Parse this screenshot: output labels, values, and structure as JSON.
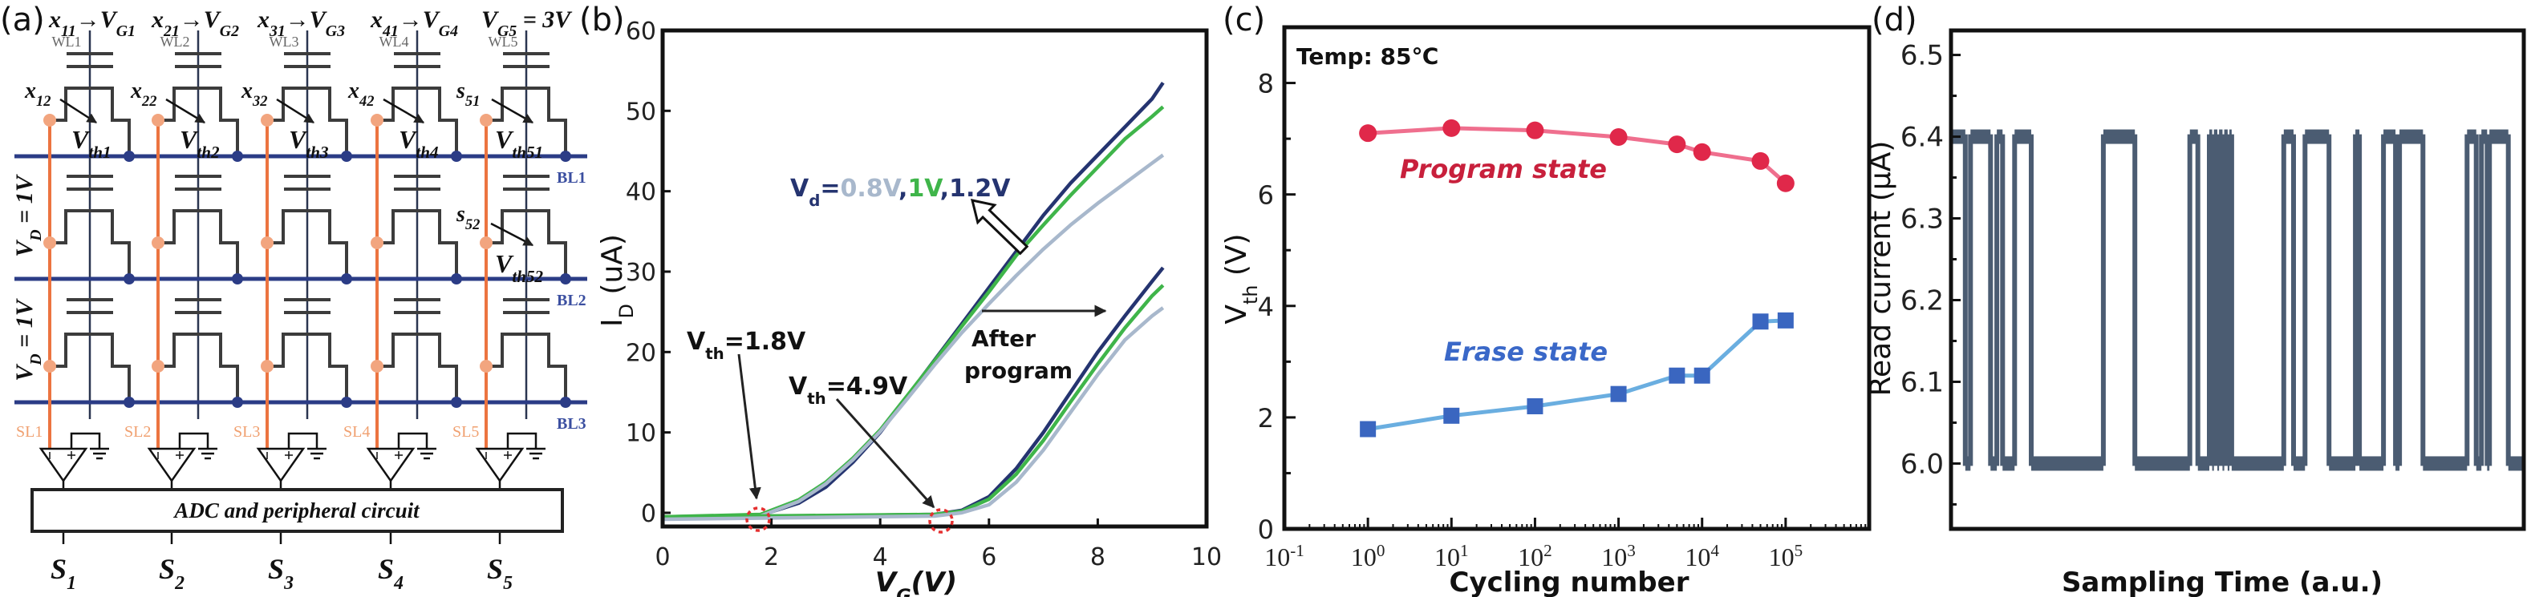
{
  "panel_labels": {
    "a": "(a)",
    "b": "(b)",
    "c": "(c)",
    "d": "(d)"
  },
  "diagram": {
    "top_labels": [
      "x_{11}→V_{G1}",
      "x_{21}→V_{G2}",
      "x_{31}→V_{G3}",
      "x_{41}→V_{G4}",
      "V_{G5} = 3V"
    ],
    "word_lines": [
      "WL1",
      "WL2",
      "WL3",
      "WL4",
      "WL5"
    ],
    "input_labels_row1": [
      "x_{12}",
      "x_{22}",
      "x_{32}",
      "x_{42}",
      "s_{51}"
    ],
    "vth_labels_row1": [
      "V_{th1}",
      "V_{th2}",
      "V_{th3}",
      "V_{th4}",
      "V_{th51}"
    ],
    "input_label_row2": "s_{52}",
    "vth_label_row2": "V_{th52}",
    "bit_lines": [
      "BL1",
      "BL2",
      "BL3"
    ],
    "source_lines": [
      "SL1",
      "SL2",
      "SL3",
      "SL4",
      "SL5"
    ],
    "drain_voltage_labels": [
      "V_{D} = 1V",
      "V_{D} = 1V"
    ],
    "adc_label": "ADC and peripheral circuit",
    "outputs": [
      "S_{1}",
      "S_{2}",
      "S_{3}",
      "S_{4}",
      "S_{5}"
    ],
    "colors": {
      "bit_line": "#2b3c86",
      "source_line": "#ec7440",
      "source_node": "#f2a57f",
      "source_label": "#f0a070",
      "bit_label": "#3b4fa0",
      "cell": "#3c3c3c",
      "word_line": "#2a3550"
    }
  },
  "chart_data": [
    {
      "panel": "b",
      "type": "line",
      "xlabel": "V_{G}(V)",
      "ylabel": "I_{D} (uA)",
      "xlim": [
        0,
        10
      ],
      "ylim": [
        -1.7,
        60
      ],
      "xticks": [
        0,
        2,
        4,
        6,
        8,
        10
      ],
      "yticks": [
        0,
        10,
        20,
        30,
        40,
        50,
        60
      ],
      "grid": false,
      "series": [
        {
          "name": "1.2V",
          "after_program": false,
          "color": "#253470",
          "x": [
            0,
            1.8,
            2.5,
            3,
            3.5,
            4,
            4.5,
            5,
            5.5,
            6,
            6.5,
            7,
            7.5,
            8,
            8.5,
            9,
            9.2
          ],
          "y": [
            -0.5,
            -0.3,
            1.2,
            3.2,
            6.3,
            10,
            14.5,
            19,
            23.5,
            28,
            32.5,
            37,
            41,
            44.5,
            48,
            51.5,
            53.5
          ]
        },
        {
          "name": "1V",
          "after_program": false,
          "color": "#3fb54a",
          "x": [
            0,
            1.8,
            2.5,
            3,
            3.5,
            4,
            4.5,
            5,
            5.5,
            6,
            6.5,
            7,
            7.5,
            8,
            8.5,
            9,
            9.2
          ],
          "y": [
            -0.5,
            -0.2,
            1.6,
            3.8,
            6.8,
            10.3,
            14.6,
            18.9,
            23.2,
            27.5,
            32,
            35.8,
            39.5,
            43,
            46.5,
            49.3,
            50.5
          ]
        },
        {
          "name": "0.8V",
          "after_program": false,
          "color": "#a8b8cc",
          "x": [
            0,
            1.8,
            2.5,
            3,
            3.5,
            4,
            4.5,
            5,
            5.5,
            6,
            6.5,
            7,
            7.5,
            8,
            8.5,
            9,
            9.2
          ],
          "y": [
            -0.7,
            -0.4,
            1.4,
            3.6,
            6.6,
            10.1,
            14.2,
            18.4,
            22.4,
            26,
            29.5,
            32.8,
            35.8,
            38.5,
            41,
            43.5,
            44.5
          ]
        },
        {
          "name": "1.2V",
          "after_program": true,
          "color": "#253470",
          "x": [
            0,
            5,
            5.5,
            6,
            6.5,
            7,
            7.5,
            8,
            8.5,
            9,
            9.2
          ],
          "y": [
            -0.6,
            -0.2,
            0.3,
            2,
            5.5,
            10,
            15,
            20,
            24.5,
            28.8,
            30.5
          ]
        },
        {
          "name": "1V",
          "after_program": true,
          "color": "#3fb54a",
          "x": [
            0,
            5,
            5.5,
            6,
            6.5,
            7,
            7.5,
            8,
            8.5,
            9,
            9.2
          ],
          "y": [
            -0.5,
            -0.2,
            0.2,
            1.7,
            4.8,
            9,
            13.8,
            18.5,
            23,
            27,
            28.3
          ]
        },
        {
          "name": "0.8V",
          "after_program": true,
          "color": "#a8b8cc",
          "x": [
            0,
            5,
            5.5,
            6,
            6.5,
            7,
            7.5,
            8,
            8.5,
            9,
            9.2
          ],
          "y": [
            -0.8,
            -0.4,
            0,
            1,
            3.8,
            7.8,
            12.5,
            17.2,
            21.5,
            24.5,
            25.5
          ]
        }
      ],
      "annotations": {
        "vd_prefix": "V_{d}=",
        "vd_values": [
          "0.8V",
          "1V",
          "1.2V"
        ],
        "vd_separator": ",",
        "vth_erase": "V_{th}=1.8V",
        "vth_program": "V_{th}=4.9V",
        "after_program": [
          "After",
          "program"
        ],
        "threshold_marker_color": "#e53030"
      }
    },
    {
      "panel": "c",
      "type": "line",
      "xscale": "log",
      "xlabel": "Cycling number",
      "ylabel": "V_{th} (V)",
      "xlim": [
        0.1,
        1000000
      ],
      "ylim": [
        0,
        9
      ],
      "xtick_values": [
        0.1,
        1,
        10,
        100,
        1000,
        10000,
        100000
      ],
      "xtick_labels": [
        "10^{-1}",
        "10^{0}",
        "10^{1}",
        "10^{2}",
        "10^{3}",
        "10^{4}",
        "10^{5}"
      ],
      "yticks": [
        0,
        2,
        4,
        6,
        8
      ],
      "grid": false,
      "annotation": "Temp: 85℃",
      "series": [
        {
          "name": "Program state",
          "marker": "circle",
          "color": "#e0284a",
          "line_color": "#ef6f8e",
          "label_color": "#c8203c",
          "x": [
            1,
            10,
            100,
            1000,
            5000,
            10000,
            50000,
            100000
          ],
          "y": [
            7.1,
            7.19,
            7.15,
            7.03,
            6.9,
            6.76,
            6.6,
            6.2
          ]
        },
        {
          "name": "Erase state",
          "marker": "square",
          "color": "#3a66c0",
          "line_color": "#6aaee0",
          "label_color": "#3a68c8",
          "x": [
            1,
            10,
            100,
            1000,
            5000,
            10000,
            50000,
            100000
          ],
          "y": [
            1.79,
            2.03,
            2.2,
            2.42,
            2.75,
            2.75,
            3.72,
            3.74
          ]
        }
      ]
    },
    {
      "panel": "d",
      "type": "line",
      "xlabel": "Sampling Time (a.u.)",
      "ylabel": "Read current (μA)",
      "ylim": [
        5.92,
        6.53
      ],
      "yticks": [
        6.0,
        6.1,
        6.2,
        6.3,
        6.4,
        6.5
      ],
      "ytick_labels": [
        "6.0",
        "6.1",
        "6.2",
        "6.3",
        "6.4",
        "6.5"
      ],
      "grid": false,
      "color": "#4b5c72",
      "levels": [
        6.0,
        6.4
      ],
      "segments": [
        [
          0,
          2.5,
          6.4
        ],
        [
          2.5,
          3.4,
          6.0
        ],
        [
          3.4,
          6.9,
          6.4
        ],
        [
          6.9,
          8.0,
          6.0
        ],
        [
          8.0,
          9.0,
          6.4
        ],
        [
          9.0,
          11.1,
          6.0
        ],
        [
          11.1,
          14.0,
          6.4
        ],
        [
          14.0,
          26.6,
          6.0
        ],
        [
          26.6,
          32.1,
          6.4
        ],
        [
          32.1,
          41.7,
          6.0
        ],
        [
          41.7,
          43.1,
          6.4
        ],
        [
          43.1,
          45.1,
          6.0
        ],
        [
          45.1,
          45.6,
          6.4
        ],
        [
          45.6,
          45.9,
          6.0
        ],
        [
          45.9,
          46.5,
          6.4
        ],
        [
          46.5,
          46.8,
          6.0
        ],
        [
          46.8,
          47.4,
          6.4
        ],
        [
          47.4,
          47.7,
          6.0
        ],
        [
          47.7,
          48.3,
          6.4
        ],
        [
          48.3,
          48.6,
          6.0
        ],
        [
          48.6,
          49.0,
          6.4
        ],
        [
          49.0,
          58.1,
          6.0
        ],
        [
          58.1,
          59.8,
          6.4
        ],
        [
          59.8,
          61.8,
          6.0
        ],
        [
          61.8,
          66.0,
          6.4
        ],
        [
          66.0,
          70.6,
          6.0
        ],
        [
          70.6,
          71.3,
          6.4
        ],
        [
          71.3,
          75.5,
          6.0
        ],
        [
          75.5,
          77.6,
          6.4
        ],
        [
          77.6,
          78.3,
          6.0
        ],
        [
          78.3,
          82.4,
          6.4
        ],
        [
          82.4,
          90.1,
          6.0
        ],
        [
          90.1,
          91.7,
          6.4
        ],
        [
          91.7,
          92.6,
          6.0
        ],
        [
          92.6,
          93.6,
          6.4
        ],
        [
          93.6,
          94.0,
          6.0
        ],
        [
          94.0,
          97.3,
          6.4
        ],
        [
          97.3,
          100,
          6.0
        ]
      ]
    }
  ]
}
